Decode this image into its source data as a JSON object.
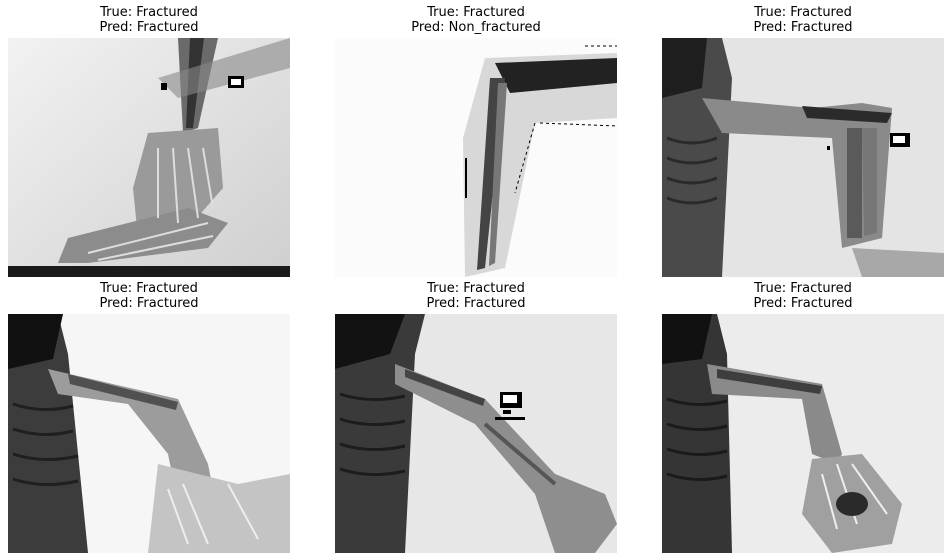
{
  "grid": {
    "panels": [
      {
        "true_label": "True: Fractured",
        "pred_label": "Pred: Fractured"
      },
      {
        "true_label": "True: Fractured",
        "pred_label": "Pred: Non_fractured"
      },
      {
        "true_label": "True: Fractured",
        "pred_label": "Pred: Fractured"
      },
      {
        "true_label": "True: Fractured",
        "pred_label": "Pred: Fractured"
      },
      {
        "true_label": "True: Fractured",
        "pred_label": "Pred: Fractured"
      },
      {
        "true_label": "True: Fractured",
        "pred_label": "Pred: Fractured"
      }
    ]
  }
}
